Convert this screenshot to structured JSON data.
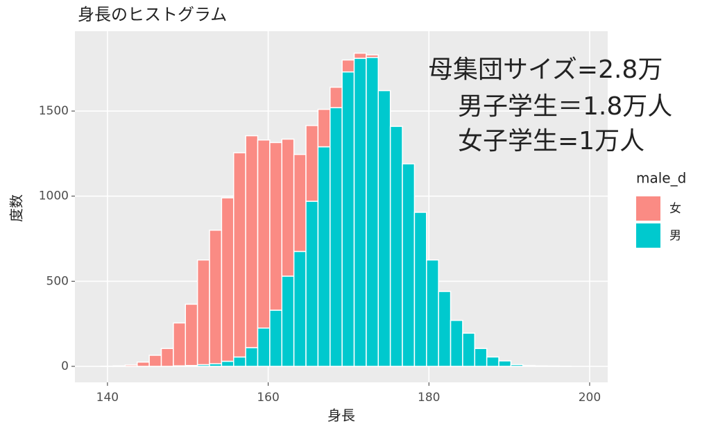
{
  "chart_data": {
    "type": "histogram",
    "title": "身長のヒストグラム",
    "x_label": "身長",
    "y_label": "度数",
    "bins": [
      139.2,
      140.7,
      142.2,
      143.7,
      145.2,
      146.7,
      148.2,
      149.7,
      151.2,
      152.7,
      154.2,
      155.7,
      157.2,
      158.7,
      160.2,
      161.7,
      163.2,
      164.7,
      166.2,
      167.7,
      169.2,
      170.7,
      172.2,
      173.7,
      175.2,
      176.7,
      178.2,
      179.7,
      181.2,
      182.7,
      184.2,
      185.7,
      187.2,
      188.7,
      190.2,
      191.7,
      193.2,
      194.7,
      196.2,
      197.7,
      199.2,
      200.7
    ],
    "series": [
      {
        "name": "女",
        "color": "#FA8B84",
        "values": [
          1,
          3,
          8,
          25,
          65,
          105,
          252,
          360,
          615,
          785,
          960,
          1200,
          1245,
          1105,
          985,
          805,
          570,
          445,
          220,
          120,
          70,
          30,
          15,
          0,
          0,
          0,
          0,
          0,
          0,
          0,
          0,
          0,
          0,
          0,
          0,
          0,
          0,
          0,
          0,
          0,
          0
        ]
      },
      {
        "name": "男",
        "color": "#00C9CE",
        "values": [
          0,
          0,
          0,
          0,
          0,
          0,
          3,
          5,
          10,
          15,
          30,
          55,
          110,
          225,
          330,
          530,
          675,
          970,
          1290,
          1520,
          1730,
          1810,
          1815,
          1620,
          1410,
          1190,
          905,
          625,
          440,
          270,
          195,
          105,
          55,
          32,
          10,
          5,
          3,
          2,
          1,
          0,
          0
        ]
      }
    ],
    "stacked": true,
    "xlim": [
      135.95,
      202.25
    ],
    "xticks": [
      140,
      160,
      180,
      200
    ],
    "ylim": [
      -94,
      1969
    ],
    "yticks": [
      0,
      500,
      1000,
      1500
    ],
    "grid": true,
    "legend_title": "male_d",
    "legend_position": "right",
    "annotations": [
      "母集団サイズ=2.8万",
      "男子学生＝1.8万人",
      "女子学生=1万人"
    ]
  }
}
